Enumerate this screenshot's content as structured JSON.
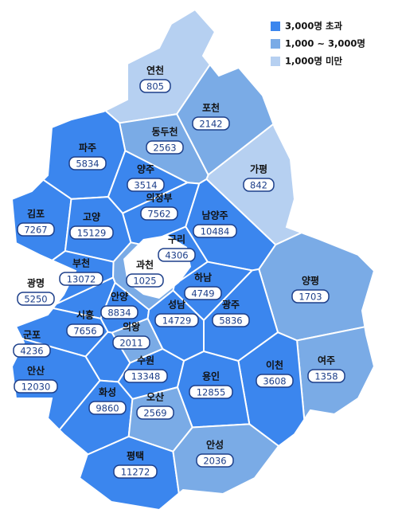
{
  "legend": [
    {
      "label": "3,000명 초과",
      "color": "#3b86ee"
    },
    {
      "label": "1,000 ~ 3,000명",
      "color": "#7aabe6"
    },
    {
      "label": "1,000명 미만",
      "color": "#b6d0f1"
    }
  ],
  "regions": [
    {
      "name": "연천",
      "value": 805,
      "color": "#b6d0f1"
    },
    {
      "name": "포천",
      "value": 2142,
      "color": "#7aabe6"
    },
    {
      "name": "가평",
      "value": 842,
      "color": "#b6d0f1"
    },
    {
      "name": "동두천",
      "value": 2563,
      "color": "#7aabe6"
    },
    {
      "name": "파주",
      "value": 5834,
      "color": "#3b86ee"
    },
    {
      "name": "양주",
      "value": 3514,
      "color": "#3b86ee"
    },
    {
      "name": "의정부",
      "value": 7562,
      "color": "#3b86ee"
    },
    {
      "name": "남양주",
      "value": 10484,
      "color": "#3b86ee"
    },
    {
      "name": "김포",
      "value": 7267,
      "color": "#3b86ee"
    },
    {
      "name": "고양",
      "value": 15129,
      "color": "#3b86ee"
    },
    {
      "name": "구리",
      "value": 4306,
      "color": "#3b86ee"
    },
    {
      "name": "부천",
      "value": 13072,
      "color": "#3b86ee"
    },
    {
      "name": "과천",
      "value": 1025,
      "color": "#7aabe6"
    },
    {
      "name": "하남",
      "value": 4749,
      "color": "#3b86ee"
    },
    {
      "name": "광명",
      "value": 5250,
      "color": "#3b86ee"
    },
    {
      "name": "안양",
      "value": 8834,
      "color": "#3b86ee"
    },
    {
      "name": "양평",
      "value": 1703,
      "color": "#7aabe6"
    },
    {
      "name": "시흥",
      "value": 7656,
      "color": "#3b86ee"
    },
    {
      "name": "성남",
      "value": 14729,
      "color": "#3b86ee"
    },
    {
      "name": "광주",
      "value": 5836,
      "color": "#3b86ee"
    },
    {
      "name": "의왕",
      "value": 2011,
      "color": "#7aabe6"
    },
    {
      "name": "군포",
      "value": 4236,
      "color": "#3b86ee"
    },
    {
      "name": "여주",
      "value": 1358,
      "color": "#7aabe6"
    },
    {
      "name": "이천",
      "value": 3608,
      "color": "#3b86ee"
    },
    {
      "name": "수원",
      "value": 13348,
      "color": "#3b86ee"
    },
    {
      "name": "안산",
      "value": 12030,
      "color": "#3b86ee"
    },
    {
      "name": "용인",
      "value": 12855,
      "color": "#3b86ee"
    },
    {
      "name": "화성",
      "value": 9860,
      "color": "#3b86ee"
    },
    {
      "name": "오산",
      "value": 2569,
      "color": "#7aabe6"
    },
    {
      "name": "평택",
      "value": 11272,
      "color": "#3b86ee"
    },
    {
      "name": "안성",
      "value": 2036,
      "color": "#7aabe6"
    }
  ]
}
